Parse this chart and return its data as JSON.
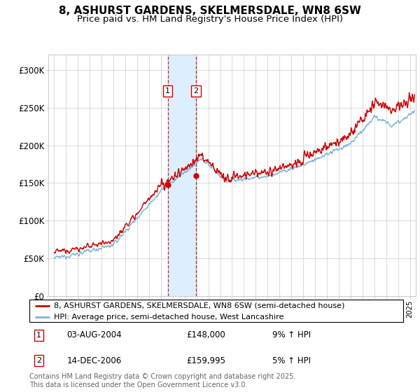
{
  "title": "8, ASHURST GARDENS, SKELMERSDALE, WN8 6SW",
  "subtitle": "Price paid vs. HM Land Registry's House Price Index (HPI)",
  "ylabel_ticks": [
    "£0",
    "£50K",
    "£100K",
    "£150K",
    "£200K",
    "£250K",
    "£300K"
  ],
  "ytick_vals": [
    0,
    50000,
    100000,
    150000,
    200000,
    250000,
    300000
  ],
  "ylim": [
    0,
    320000
  ],
  "xlim_start": 1994.5,
  "xlim_end": 2025.5,
  "sale1_date": 2004.585,
  "sale1_price": 148000,
  "sale1_label": "1",
  "sale1_text": "03-AUG-2004",
  "sale1_price_str": "£148,000",
  "sale1_pct": "9% ↑ HPI",
  "sale2_date": 2006.95,
  "sale2_price": 159995,
  "sale2_label": "2",
  "sale2_text": "14-DEC-2006",
  "sale2_price_str": "£159,995",
  "sale2_pct": "5% ↑ HPI",
  "legend_line1": "8, ASHURST GARDENS, SKELMERSDALE, WN8 6SW (semi-detached house)",
  "legend_line2": "HPI: Average price, semi-detached house, West Lancashire",
  "footer": "Contains HM Land Registry data © Crown copyright and database right 2025.\nThis data is licensed under the Open Government Licence v3.0.",
  "line_red": "#cc0000",
  "line_blue": "#7fb3d3",
  "shade_color": "#ddeeff",
  "marker_box_color": "#cc0000",
  "grid_color": "#cccccc",
  "bg_color": "#ffffff",
  "title_fontsize": 11,
  "subtitle_fontsize": 9.5,
  "tick_fontsize": 8.5,
  "legend_fontsize": 8,
  "footer_fontsize": 7
}
